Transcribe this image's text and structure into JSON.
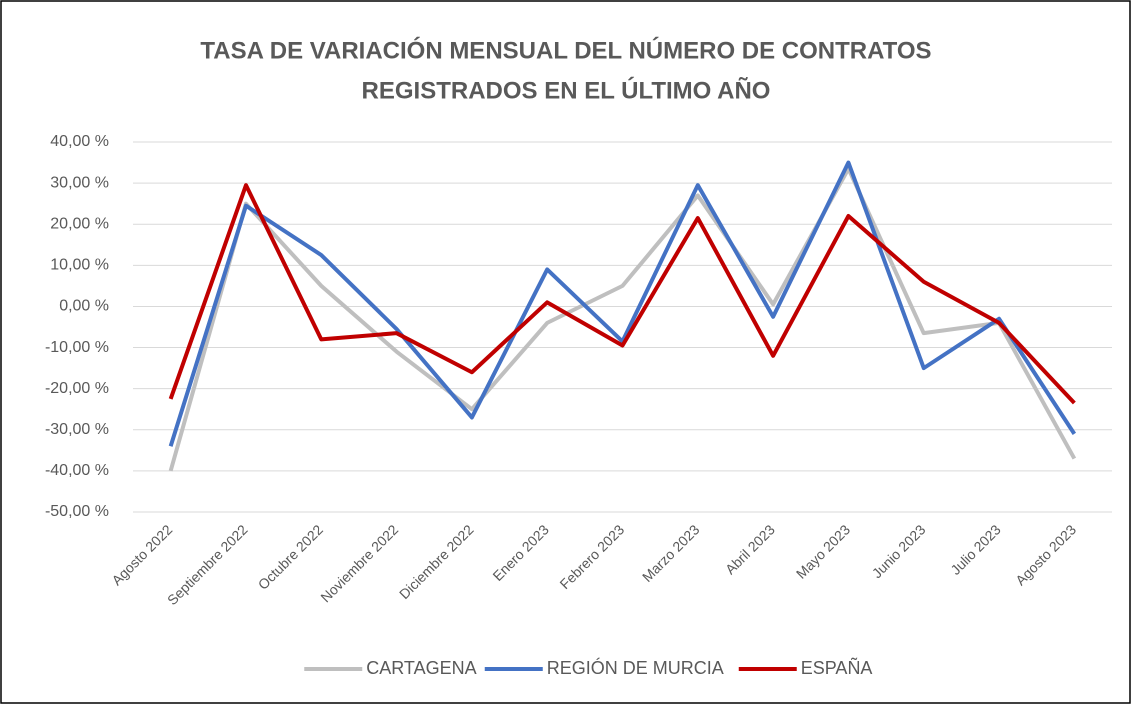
{
  "chart_data": {
    "type": "line",
    "title": [
      "TASA DE VARIACIÓN MENSUAL DEL NÚMERO DE CONTRATOS",
      "REGISTRADOS EN EL ÚLTIMO AÑO"
    ],
    "categories": [
      "Agosto 2022",
      "Septiembre 2022",
      "Octubre 2022",
      "Noviembre 2022",
      "Diciembre 2022",
      "Enero 2023",
      "Febrero 2023",
      "Marzo 2023",
      "Abril 2023",
      "Mayo 2023",
      "Junio 2023",
      "Julio 2023",
      "Agosto 2023"
    ],
    "series": [
      {
        "name": "CARTAGENA",
        "color": "#bfbfbf",
        "values": [
          -40,
          25,
          5,
          -11,
          -25,
          -4,
          5,
          27,
          0.5,
          33.5,
          -6.5,
          -4,
          -37
        ]
      },
      {
        "name": "REGIÓN DE MURCIA",
        "color": "#4472c4",
        "values": [
          -34,
          24.5,
          12.5,
          -5.5,
          -27,
          9,
          -8.5,
          29.5,
          -2.5,
          35,
          -15,
          -3,
          -31
        ]
      },
      {
        "name": "ESPAÑA",
        "color": "#c00000",
        "values": [
          -22.5,
          29.5,
          -8,
          -6.5,
          -16,
          1,
          -9.5,
          21.5,
          -12,
          22,
          6,
          -4,
          -23.5
        ]
      }
    ],
    "ylim": [
      -50,
      40
    ],
    "yticks": [
      {
        "value": -50,
        "label": "-50,00 %"
      },
      {
        "value": -40,
        "label": "-40,00 %"
      },
      {
        "value": -30,
        "label": "-30,00 %"
      },
      {
        "value": -20,
        "label": "-20,00 %"
      },
      {
        "value": -10,
        "label": "-10,00 %"
      },
      {
        "value": 0,
        "label": "0,00 %"
      },
      {
        "value": 10,
        "label": "10,00 %"
      },
      {
        "value": 20,
        "label": "20,00 %"
      },
      {
        "value": 30,
        "label": "30,00 %"
      },
      {
        "value": 40,
        "label": "40,00 %"
      }
    ],
    "grid": true,
    "legend": "bottom"
  }
}
